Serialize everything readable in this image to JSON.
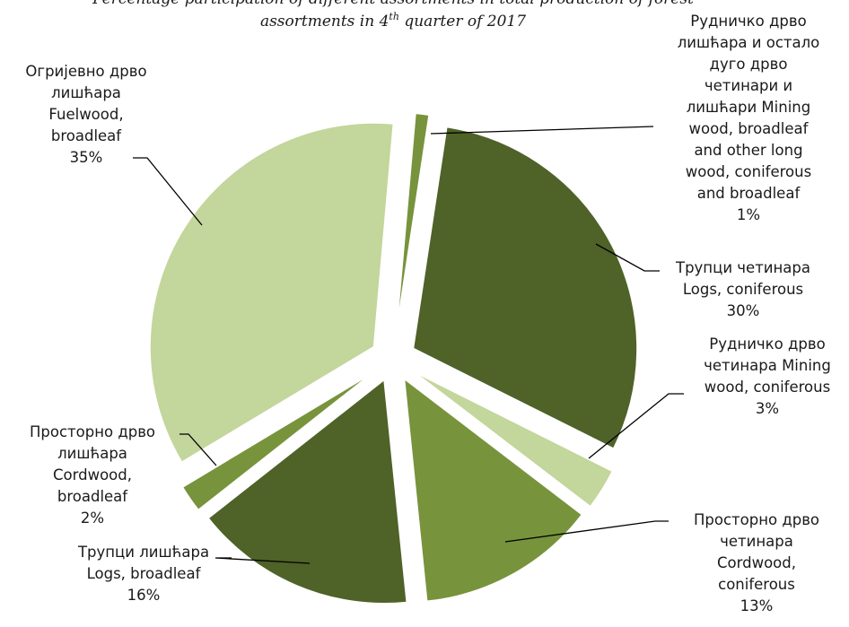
{
  "chart_data": {
    "type": "pie",
    "title_line1": "Percentage participation of different assortments in total production of forest",
    "title_line2_pre": "assortments in 4",
    "title_line2_sup": "th",
    "title_line2_post": " quarter of 2017",
    "legend": "none",
    "slices": [
      {
        "label_lines": [
          "Рудничко дрво",
          "лишћара и остало",
          "дуго дрво",
          "четинари и",
          "лишћари Mining",
          "wood, broadleaf",
          "and other long",
          "wood, coniferous",
          "and broadleaf",
          "1%"
        ],
        "value": 1,
        "color": "#77933c"
      },
      {
        "label_lines": [
          "Трупци четинара",
          "Logs, coniferous",
          "30%"
        ],
        "value": 30,
        "color": "#4f6228"
      },
      {
        "label_lines": [
          "Рудничко дрво",
          "четинара Mining",
          "wood, coniferous",
          "3%"
        ],
        "value": 3,
        "color": "#c3d69b"
      },
      {
        "label_lines": [
          "Просторно дрво",
          "четинара",
          "Cordwood,",
          "coniferous",
          "13%"
        ],
        "value": 13,
        "color": "#77933c"
      },
      {
        "label_lines": [
          "Трупци лишћара",
          "Logs, broadleaf",
          "16%"
        ],
        "value": 16,
        "color": "#4f6228"
      },
      {
        "label_lines": [
          "Просторно дрво",
          "лишћара",
          "Cordwood,",
          "broadleaf",
          "2%"
        ],
        "value": 2,
        "color": "#77933c"
      },
      {
        "label_lines": [
          "Огријевно дрво",
          "лишћара",
          "Fuelwood,",
          "broadleaf",
          "35%"
        ],
        "value": 35,
        "color": "#c3d69b"
      }
    ]
  }
}
